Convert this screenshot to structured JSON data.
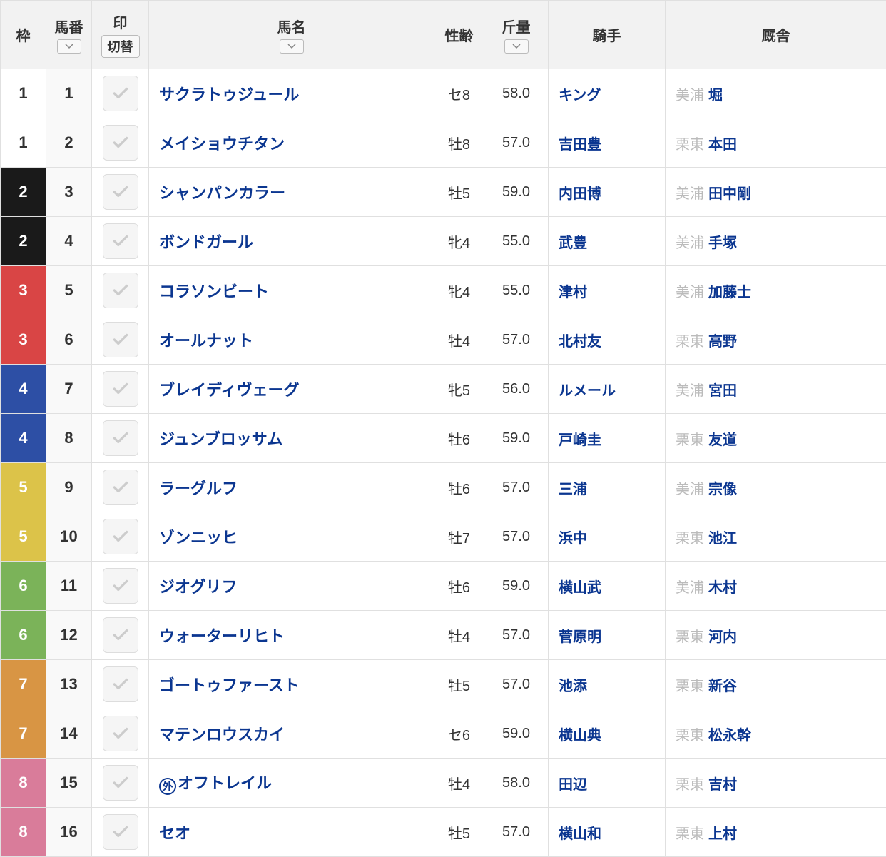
{
  "headers": {
    "waku": "枠",
    "umaban": "馬番",
    "mark": "印",
    "switch": "切替",
    "name": "馬名",
    "sexage": "性齢",
    "weight": "斤量",
    "jockey": "騎手",
    "trainer": "厩舎"
  },
  "waku_colors": {
    "1": {
      "bg": "#ffffff",
      "fg": "#333333"
    },
    "2": {
      "bg": "#1a1a1a",
      "fg": "#ffffff"
    },
    "3": {
      "bg": "#d94545",
      "fg": "#ffffff"
    },
    "4": {
      "bg": "#2d4fa5",
      "fg": "#ffffff"
    },
    "5": {
      "bg": "#dcc349",
      "fg": "#ffffff"
    },
    "6": {
      "bg": "#7bb359",
      "fg": "#ffffff"
    },
    "7": {
      "bg": "#d89544",
      "fg": "#ffffff"
    },
    "8": {
      "bg": "#d97c9a",
      "fg": "#ffffff"
    }
  },
  "rows": [
    {
      "waku": "1",
      "umaban": "1",
      "name": "サクラトゥジュール",
      "sexage": "セ8",
      "weight": "58.0",
      "jockey": "キング",
      "region": "美浦",
      "trainer": "堀",
      "gai": false
    },
    {
      "waku": "1",
      "umaban": "2",
      "name": "メイショウチタン",
      "sexage": "牡8",
      "weight": "57.0",
      "jockey": "吉田豊",
      "region": "栗東",
      "trainer": "本田",
      "gai": false
    },
    {
      "waku": "2",
      "umaban": "3",
      "name": "シャンパンカラー",
      "sexage": "牡5",
      "weight": "59.0",
      "jockey": "内田博",
      "region": "美浦",
      "trainer": "田中剛",
      "gai": false
    },
    {
      "waku": "2",
      "umaban": "4",
      "name": "ボンドガール",
      "sexage": "牝4",
      "weight": "55.0",
      "jockey": "武豊",
      "region": "美浦",
      "trainer": "手塚",
      "gai": false
    },
    {
      "waku": "3",
      "umaban": "5",
      "name": "コラソンビート",
      "sexage": "牝4",
      "weight": "55.0",
      "jockey": "津村",
      "region": "美浦",
      "trainer": "加藤士",
      "gai": false
    },
    {
      "waku": "3",
      "umaban": "6",
      "name": "オールナット",
      "sexage": "牡4",
      "weight": "57.0",
      "jockey": "北村友",
      "region": "栗東",
      "trainer": "高野",
      "gai": false
    },
    {
      "waku": "4",
      "umaban": "7",
      "name": "ブレイディヴェーグ",
      "sexage": "牝5",
      "weight": "56.0",
      "jockey": "ルメール",
      "region": "美浦",
      "trainer": "宮田",
      "gai": false
    },
    {
      "waku": "4",
      "umaban": "8",
      "name": "ジュンブロッサム",
      "sexage": "牡6",
      "weight": "59.0",
      "jockey": "戸崎圭",
      "region": "栗東",
      "trainer": "友道",
      "gai": false
    },
    {
      "waku": "5",
      "umaban": "9",
      "name": "ラーグルフ",
      "sexage": "牡6",
      "weight": "57.0",
      "jockey": "三浦",
      "region": "美浦",
      "trainer": "宗像",
      "gai": false
    },
    {
      "waku": "5",
      "umaban": "10",
      "name": "ゾンニッヒ",
      "sexage": "牡7",
      "weight": "57.0",
      "jockey": "浜中",
      "region": "栗東",
      "trainer": "池江",
      "gai": false
    },
    {
      "waku": "6",
      "umaban": "11",
      "name": "ジオグリフ",
      "sexage": "牡6",
      "weight": "59.0",
      "jockey": "横山武",
      "region": "美浦",
      "trainer": "木村",
      "gai": false
    },
    {
      "waku": "6",
      "umaban": "12",
      "name": "ウォーターリヒト",
      "sexage": "牡4",
      "weight": "57.0",
      "jockey": "菅原明",
      "region": "栗東",
      "trainer": "河内",
      "gai": false
    },
    {
      "waku": "7",
      "umaban": "13",
      "name": "ゴートゥファースト",
      "sexage": "牡5",
      "weight": "57.0",
      "jockey": "池添",
      "region": "栗東",
      "trainer": "新谷",
      "gai": false
    },
    {
      "waku": "7",
      "umaban": "14",
      "name": "マテンロウスカイ",
      "sexage": "セ6",
      "weight": "59.0",
      "jockey": "横山典",
      "region": "栗東",
      "trainer": "松永幹",
      "gai": false
    },
    {
      "waku": "8",
      "umaban": "15",
      "name": "オフトレイル",
      "sexage": "牡4",
      "weight": "58.0",
      "jockey": "田辺",
      "region": "栗東",
      "trainer": "吉村",
      "gai": true
    },
    {
      "waku": "8",
      "umaban": "16",
      "name": "セオ",
      "sexage": "牡5",
      "weight": "57.0",
      "jockey": "横山和",
      "region": "栗東",
      "trainer": "上村",
      "gai": false
    }
  ],
  "gai_label": "外"
}
